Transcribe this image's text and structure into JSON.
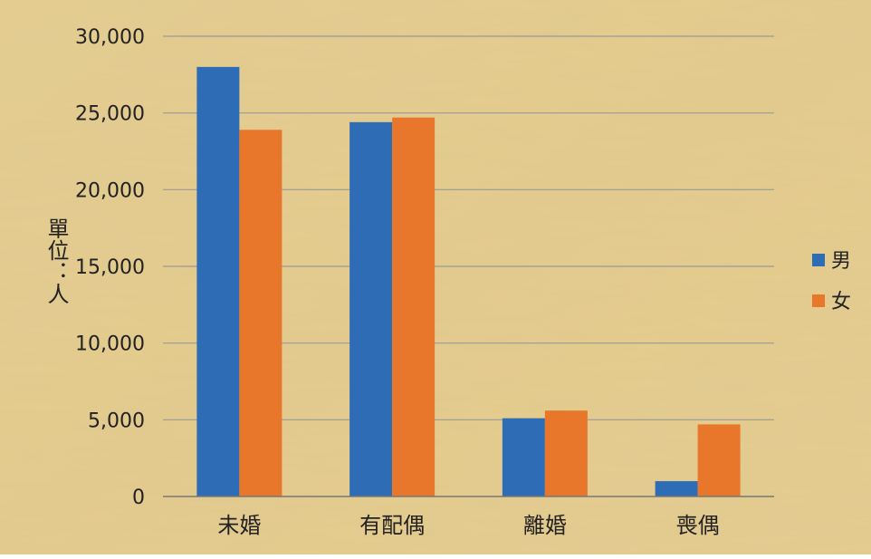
{
  "chart_data": {
    "type": "bar",
    "categories": [
      "未婚",
      "有配偶",
      "離婚",
      "喪偶"
    ],
    "series": [
      {
        "name": "男",
        "values": [
          28000,
          24400,
          5100,
          1000
        ]
      },
      {
        "name": "女",
        "values": [
          23900,
          24700,
          5600,
          4700
        ]
      }
    ],
    "ylabel": "單位：人",
    "ylim": [
      0,
      30000
    ],
    "yticks": [
      "0",
      "5,000",
      "10,000",
      "15,000",
      "20,000",
      "25,000",
      "30,000"
    ],
    "grid": true,
    "legend_position": "right"
  },
  "colors": {
    "male": "#2E6DB5",
    "female": "#E8762B",
    "gridline": "#9a9a9a",
    "axis": "#777777",
    "text": "#222222"
  }
}
